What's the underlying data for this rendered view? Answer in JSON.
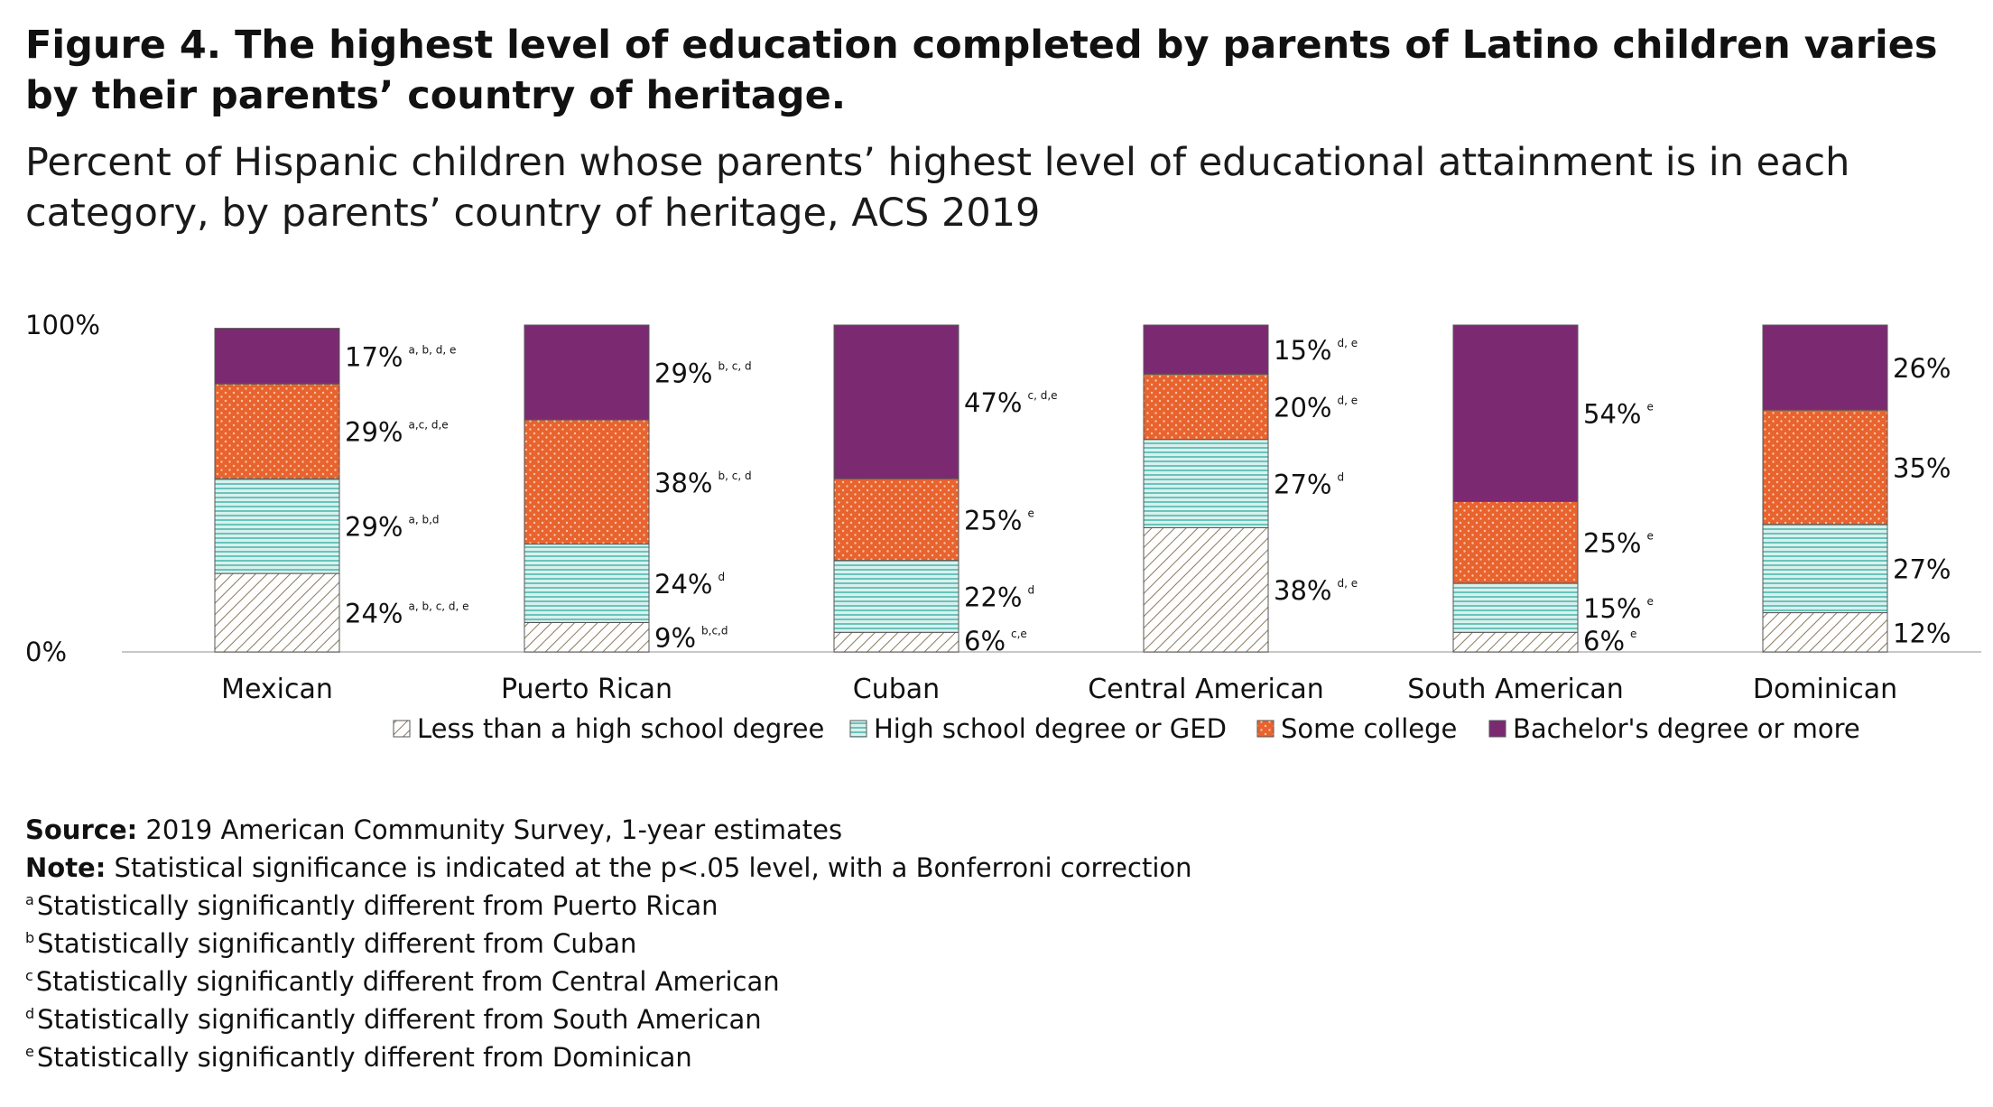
{
  "header": {
    "title": "Figure 4. The highest level of education completed by parents of Latino children varies by their parents’ country of heritage.",
    "subtitle": "Percent of Hispanic children whose parents’ highest level of educational attainment is in each category, by parents’ country of heritage, ACS 2019"
  },
  "chart_data": {
    "type": "bar",
    "stacked": true,
    "categories": [
      "Mexican",
      "Puerto Rican",
      "Cuban",
      "Central American",
      "South American",
      "Dominican"
    ],
    "ylim": [
      0,
      100
    ],
    "y_ticks": [
      "0%",
      "100%"
    ],
    "legend_position": "bottom",
    "series": [
      {
        "name": "Less than a high school degree",
        "color": "#b9a98a",
        "pattern": "diagonal-hatch",
        "values": [
          24,
          9,
          6,
          38,
          6,
          12
        ],
        "labels": [
          "24%",
          "9%",
          "6%",
          "38%",
          "6%",
          "12%"
        ],
        "notes": [
          "a, b, c, d, e",
          "b,c,d",
          "c,e",
          "d, e",
          "e",
          ""
        ]
      },
      {
        "name": "High school degree or GED",
        "color": "#5fc4bb",
        "pattern": "horizontal-lines",
        "values": [
          29,
          24,
          22,
          27,
          15,
          27
        ],
        "labels": [
          "29%",
          "24%",
          "22%",
          "27%",
          "15%",
          "27%"
        ],
        "notes": [
          "a, b,d",
          "d",
          "d",
          "d",
          "e",
          ""
        ]
      },
      {
        "name": "Some college",
        "color": "#e8632e",
        "pattern": "dots",
        "values": [
          29,
          38,
          25,
          20,
          25,
          35
        ],
        "labels": [
          "29%",
          "38%",
          "25%",
          "20%",
          "25%",
          "35%"
        ],
        "notes": [
          "a,c, d,e",
          "b, c, d",
          "e",
          "d, e",
          "e",
          ""
        ]
      },
      {
        "name": "Bachelor's degree or more",
        "color": "#7b2a72",
        "pattern": "solid",
        "values": [
          17,
          29,
          47,
          15,
          54,
          26
        ],
        "labels": [
          "17%",
          "29%",
          "47%",
          "15%",
          "54%",
          "26%"
        ],
        "notes": [
          "a, b, d, e",
          "b, c, d",
          "c, d,e",
          "d, e",
          "e",
          ""
        ]
      }
    ]
  },
  "footer": {
    "source_label": "Source:",
    "source_text": " 2019 American Community Survey, 1-year estimates",
    "note_label": "Note:",
    "note_text": " Statistical significance is indicated at the p<.05 level, with a Bonferroni correction",
    "footnotes": [
      {
        "mark": "a",
        "text": "Statistically significantly different from Puerto Rican"
      },
      {
        "mark": "b",
        "text": "Statistically significantly different from Cuban"
      },
      {
        "mark": "c",
        "text": "Statistically significantly different from Central American"
      },
      {
        "mark": "d",
        "text": "Statistically significantly different from South American"
      },
      {
        "mark": "e",
        "text": "Statistically significantly different from Dominican"
      }
    ]
  }
}
